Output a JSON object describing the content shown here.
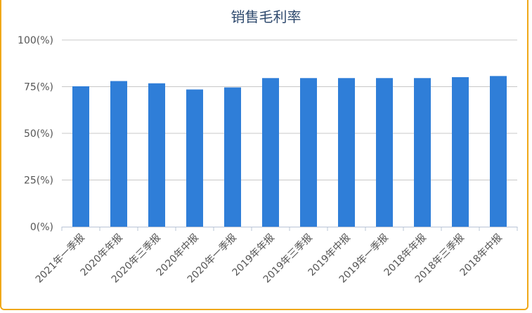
{
  "chart_data": {
    "type": "bar",
    "title": "销售毛利率",
    "categories": [
      "2021年一季报",
      "2020年年报",
      "2020年三季报",
      "2020年中报",
      "2020年一季报",
      "2019年年报",
      "2019年三季报",
      "2019年中报",
      "2019年一季报",
      "2018年年报",
      "2018年三季报",
      "2018年中报"
    ],
    "values": [
      75.2,
      78.0,
      76.8,
      73.5,
      74.6,
      79.6,
      79.6,
      79.6,
      79.6,
      79.6,
      80.1,
      80.7
    ],
    "y_ticks": [
      "0(%)",
      "25(%)",
      "50(%)",
      "75(%)",
      "100(%)"
    ],
    "ylim": [
      0,
      100
    ],
    "grid": true,
    "legend": "none",
    "bar_color": "#2f7ed8"
  }
}
